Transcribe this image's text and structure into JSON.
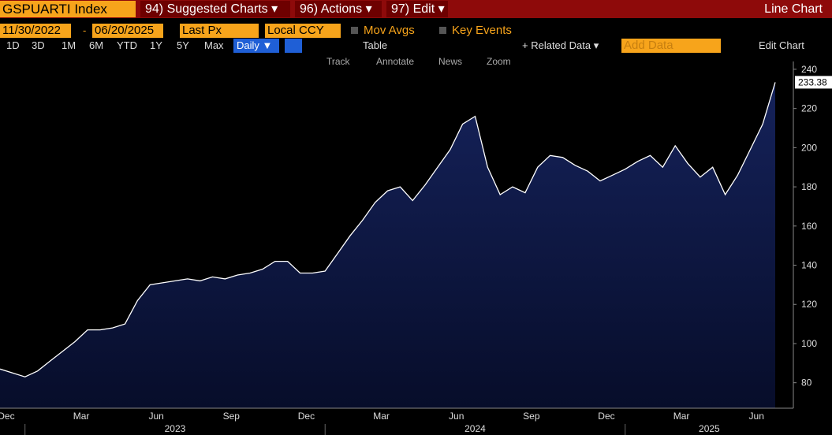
{
  "toolbar": {
    "security": "GSPUARTI Index",
    "menus": [
      "94) Suggested Charts ▾",
      "96) Actions ▾",
      "97) Edit ▾"
    ],
    "view": "Line Chart"
  },
  "settings": {
    "start_date": "11/30/2022",
    "separator": "-",
    "end_date": "06/20/2025",
    "field": "Last Px",
    "currency": "Local CCY",
    "options": [
      "Mov Avgs",
      "Key Events"
    ]
  },
  "controls": {
    "periods": [
      "1D",
      "3D",
      "1M",
      "6M",
      "YTD",
      "1Y",
      "5Y",
      "Max"
    ],
    "frequency": "Daily ▼",
    "table": "Table",
    "related": "+ Related Data ▾",
    "add_data": "Add Data",
    "edit": "Edit Chart"
  },
  "tools": [
    "Track",
    "Annotate",
    "News",
    "Zoom"
  ],
  "chart_data": {
    "type": "line",
    "categories": [
      "Dec",
      null,
      null,
      null,
      null,
      null,
      "Mar",
      null,
      null,
      null,
      null,
      null,
      "Jun",
      null,
      null,
      null,
      null,
      null,
      "Sep",
      null,
      null,
      null,
      null,
      null,
      "Dec",
      null,
      null,
      null,
      null,
      null,
      "Mar",
      null,
      null,
      null,
      null,
      null,
      "Jun",
      null,
      null,
      null,
      null,
      null,
      "Sep",
      null,
      null,
      null,
      null,
      null,
      "Dec",
      null,
      null,
      null,
      null,
      null,
      "Mar",
      null,
      null,
      null,
      null,
      null,
      "Jun",
      null,
      null
    ],
    "years": [
      "2023",
      "2024",
      "2025"
    ],
    "series": [
      {
        "name": "GSPUARTI Index",
        "color": "#ffffff",
        "fill": "#0c1640",
        "values": [
          87,
          85,
          83,
          86,
          91,
          96,
          101,
          107,
          107,
          108,
          110,
          122,
          130,
          131,
          132,
          133,
          132,
          134,
          133,
          135,
          136,
          138,
          142,
          142,
          136,
          136,
          137,
          146,
          155,
          163,
          172,
          178,
          180,
          173,
          181,
          190,
          199,
          212,
          216,
          190,
          176,
          180,
          177,
          190,
          196,
          195,
          191,
          188,
          183,
          186,
          189,
          193,
          196,
          190,
          201,
          192,
          185,
          190,
          176,
          186,
          199,
          212,
          233.38
        ],
        "last_label": "233.38"
      }
    ],
    "ylim": [
      67,
      244
    ],
    "yticks": [
      80,
      100,
      120,
      140,
      160,
      180,
      200,
      220,
      240
    ]
  }
}
